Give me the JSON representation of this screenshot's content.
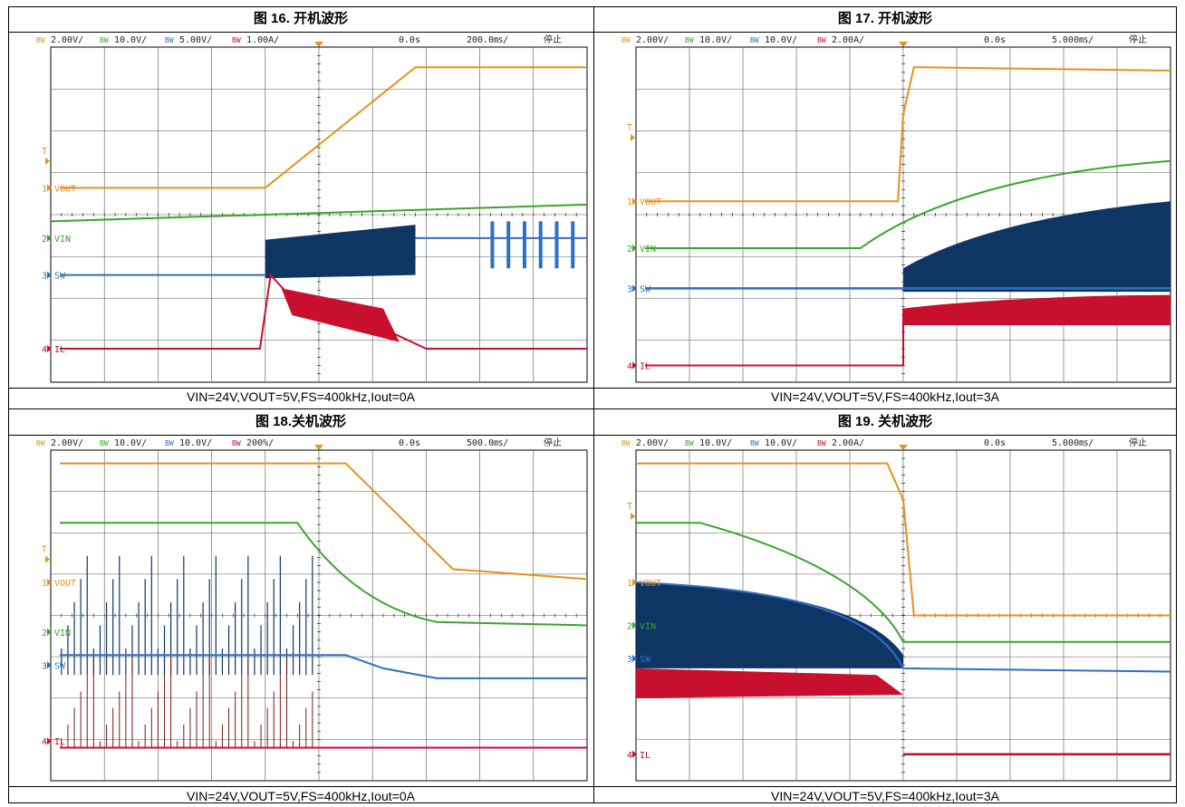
{
  "colors": {
    "vout": "#e8901c",
    "vin": "#3aa52c",
    "sw": "#2f6fc4",
    "sw_fill": "#0f3565",
    "il": "#c8102e",
    "grid": "#000000"
  },
  "figures": [
    {
      "title": "图 16. 开机波形",
      "caption": "VIN=24V,VOUT=5V,FS=400kHz,Iout=0A",
      "status": {
        "ch1": "2.00V/",
        "ch2": "10.0V/",
        "ch3": "5.00V/",
        "ch4": "1.00A/",
        "pos": "0.0s",
        "timebase": "200.0㎳/",
        "state": "停止"
      },
      "bw_label": "BW",
      "channels": [
        "VOUT",
        "VIN",
        "SW",
        "IL"
      ],
      "channel_numbers": [
        "1",
        "2",
        "3",
        "4"
      ],
      "trigger_label": "T"
    },
    {
      "title": "图 17. 开机波形",
      "caption": "VIN=24V,VOUT=5V,FS=400kHz,Iout=3A",
      "status": {
        "ch1": "2.00V/",
        "ch2": "10.0V/",
        "ch3": "10.0V/",
        "ch4": "2.00A/",
        "pos": "0.0s",
        "timebase": "5.000㎳/",
        "state": "停止"
      },
      "bw_label": "BW",
      "channels": [
        "VOUT",
        "VIN",
        "SW",
        "IL"
      ],
      "channel_numbers": [
        "1",
        "2",
        "3",
        "4"
      ],
      "trigger_label": "T"
    },
    {
      "title": "图 18.关机波形",
      "caption": "VIN=24V,VOUT=5V,FS=400kHz,Iout=0A",
      "status": {
        "ch1": "2.00V/",
        "ch2": "10.0V/",
        "ch3": "10.0V/",
        "ch4": "200%/",
        "pos": "0.0s",
        "timebase": "500.0㎳/",
        "state": "停止"
      },
      "bw_label": "BW",
      "channels": [
        "VOUT",
        "VIN",
        "SW",
        "IL"
      ],
      "channel_numbers": [
        "1",
        "2",
        "3",
        "4"
      ],
      "trigger_label": "T"
    },
    {
      "title": "图 19. 关机波形",
      "caption": "VIN=24V,VOUT=5V,FS=400kHz,Iout=3A",
      "status": {
        "ch1": "2.00V/",
        "ch2": "10.0V/",
        "ch3": "10.0V/",
        "ch4": "2.00A/",
        "pos": "0.0s",
        "timebase": "5.000㎳/",
        "state": "停止"
      },
      "bw_label": "BW",
      "channels": [
        "VOUT",
        "VIN",
        "SW",
        "IL"
      ],
      "channel_numbers": [
        "1",
        "2",
        "3",
        "4"
      ],
      "trigger_label": "T"
    }
  ]
}
